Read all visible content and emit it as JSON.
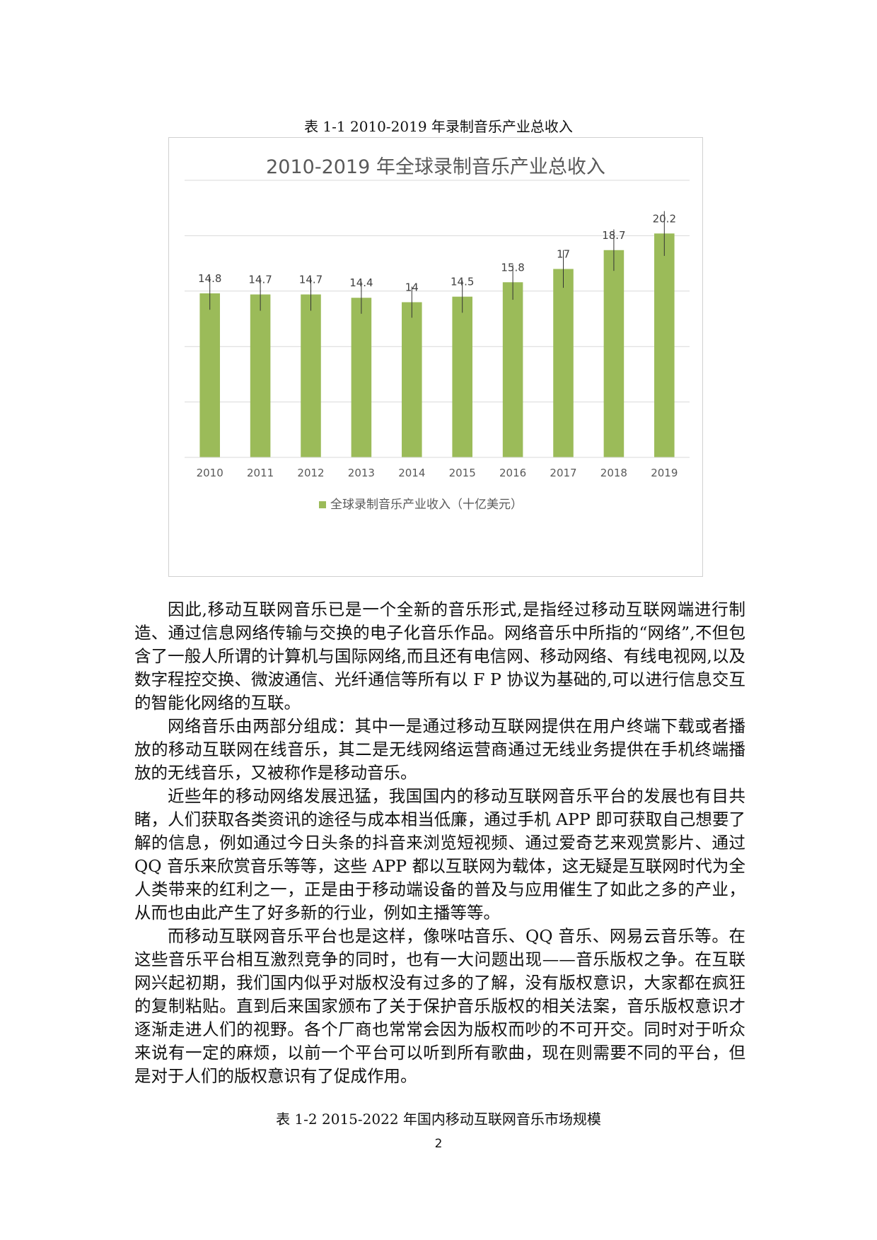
{
  "captions": {
    "top": "表 1-1 2010-2019 年录制音乐产业总收入",
    "bottom": "表 1-2 2015-2022 年国内移动互联网音乐市场规模"
  },
  "chart_data": {
    "type": "bar",
    "title": "2010-2019 年全球录制音乐产业总收入",
    "categories": [
      "2010",
      "2011",
      "2012",
      "2013",
      "2014",
      "2015",
      "2016",
      "2017",
      "2018",
      "2019"
    ],
    "series": [
      {
        "name": "全球录制音乐产业收入（十亿美元）",
        "values": [
          14.8,
          14.7,
          14.7,
          14.4,
          14,
          14.5,
          15.8,
          17,
          18.7,
          20.2
        ],
        "color": "#9bbb59"
      }
    ],
    "ylim": [
      0,
      25
    ],
    "y_gridlines": true,
    "legend": "bottom",
    "data_labels": true,
    "error_bars": true
  },
  "body": {
    "paragraphs": [
      "因此,移动互联网音乐已是一个全新的音乐形式,是指经过移动互联网端进行制造、通过信息网络传输与交换的电子化音乐作品。网络音乐中所指的“网络”,不但包含了一般人所谓的计算机与国际网络,而且还有电信网、移动网络、有线电视网,以及数字程控交换、微波通信、光纤通信等所有以 F P 协议为基础的,可以进行信息交互的智能化网络的互联。",
      "网络音乐由两部分组成：其中一是通过移动互联网提供在用户终端下载或者播放的移动互联网在线音乐，其二是无线网络运营商通过无线业务提供在手机终端播放的无线音乐，又被称作是移动音乐。",
      "近些年的移动网络发展迅猛，我国国内的移动互联网音乐平台的发展也有目共睹，人们获取各类资讯的途径与成本相当低廉，通过手机 APP 即可获取自己想要了解的信息，例如通过今日头条的抖音来浏览短视频、通过爱奇艺来观赏影片、通过 QQ 音乐来欣赏音乐等等，这些 APP 都以互联网为载体，这无疑是互联网时代为全人类带来的红利之一，正是由于移动端设备的普及与应用催生了如此之多的产业，从而也由此产生了好多新的行业，例如主播等等。",
      "而移动互联网音乐平台也是这样，像咪咕音乐、QQ 音乐、网易云音乐等。在这些音乐平台相互激烈竞争的同时，也有一大问题出现——音乐版权之争。在互联网兴起初期，我们国内似乎对版权没有过多的了解，没有版权意识，大家都在疯狂的复制粘贴。直到后来国家颁布了关于保护音乐版权的相关法案，音乐版权意识才逐渐走进人们的视野。各个厂商也常常会因为版权而吵的不可开交。同时对于听众来说有一定的麻烦，以前一个平台可以听到所有歌曲，现在则需要不同的平台，但是对于人们的版权意识有了促成作用。"
    ]
  },
  "page_number": "2"
}
